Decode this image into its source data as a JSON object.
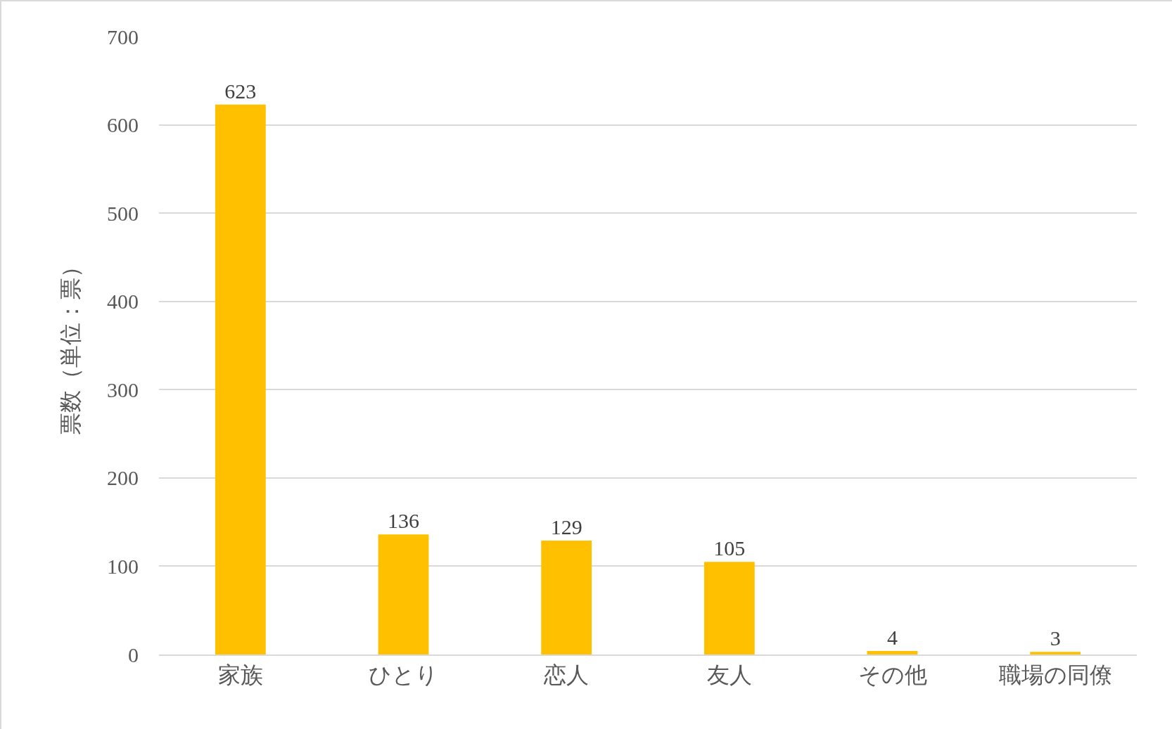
{
  "chart_data": {
    "type": "bar",
    "ylabel": "票数（単位：票）",
    "categories": [
      "家族",
      "ひとり",
      "恋人",
      "友人",
      "その他",
      "職場の同僚"
    ],
    "values": [
      623,
      136,
      129,
      105,
      4,
      3
    ],
    "color": "#ffc000",
    "ylim": [
      0,
      700
    ],
    "yticks": [
      0,
      100,
      200,
      300,
      400,
      500,
      600,
      700
    ],
    "grid": "y",
    "data_labels": true
  }
}
